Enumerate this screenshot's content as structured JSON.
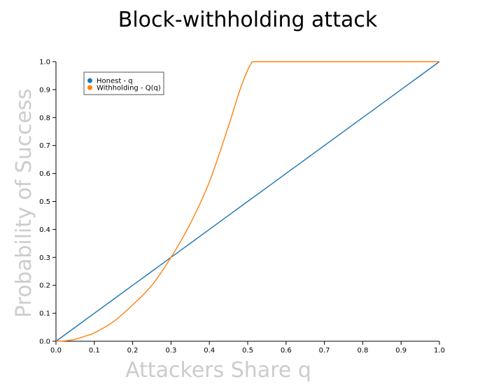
{
  "chart_data": {
    "type": "line",
    "title": "Block-withholding attack",
    "xlabel": "Attackers Share q",
    "ylabel": "Probability of Success",
    "xlim": [
      0,
      1
    ],
    "ylim": [
      0,
      1
    ],
    "xticks": [
      0.0,
      0.1,
      0.2,
      0.3,
      0.4,
      0.5,
      0.6,
      0.7,
      0.8,
      0.9,
      1.0
    ],
    "yticks": [
      0.0,
      0.1,
      0.2,
      0.3,
      0.4,
      0.5,
      0.6,
      0.7,
      0.8,
      0.9,
      1.0
    ],
    "xtick_labels": [
      "0.0",
      "0.1",
      "0.2",
      "0.3",
      "0.4",
      "0.5",
      "0.6",
      "0.7",
      "0.8",
      "0.9",
      "1.0"
    ],
    "ytick_labels": [
      "0.0",
      "0.1",
      "0.2",
      "0.3",
      "0.4",
      "0.5",
      "0.6",
      "0.7",
      "0.8",
      "0.9",
      "1.0"
    ],
    "grid": false,
    "legend_position": "top-left",
    "series": [
      {
        "name": "Honest - q",
        "color": "#1f77b4",
        "x": [
          0.0,
          0.1,
          0.2,
          0.3,
          0.4,
          0.5,
          0.6,
          0.7,
          0.8,
          0.9,
          1.0
        ],
        "y": [
          0.0,
          0.1,
          0.2,
          0.3,
          0.4,
          0.5,
          0.6,
          0.7,
          0.8,
          0.9,
          1.0
        ]
      },
      {
        "name": "Withholding - Q(q)",
        "color": "#ff7f0e",
        "x": [
          0.0,
          0.02,
          0.05,
          0.08,
          0.1,
          0.15,
          0.2,
          0.25,
          0.3,
          0.35,
          0.4,
          0.45,
          0.48,
          0.5,
          0.51,
          0.52,
          0.6,
          0.7,
          0.8,
          0.9,
          1.0
        ],
        "y": [
          0.0,
          0.001,
          0.007,
          0.02,
          0.03,
          0.07,
          0.13,
          0.2,
          0.3,
          0.42,
          0.57,
          0.77,
          0.9,
          0.97,
          0.995,
          1.0,
          1.0,
          1.0,
          1.0,
          1.0,
          1.0
        ]
      }
    ]
  }
}
